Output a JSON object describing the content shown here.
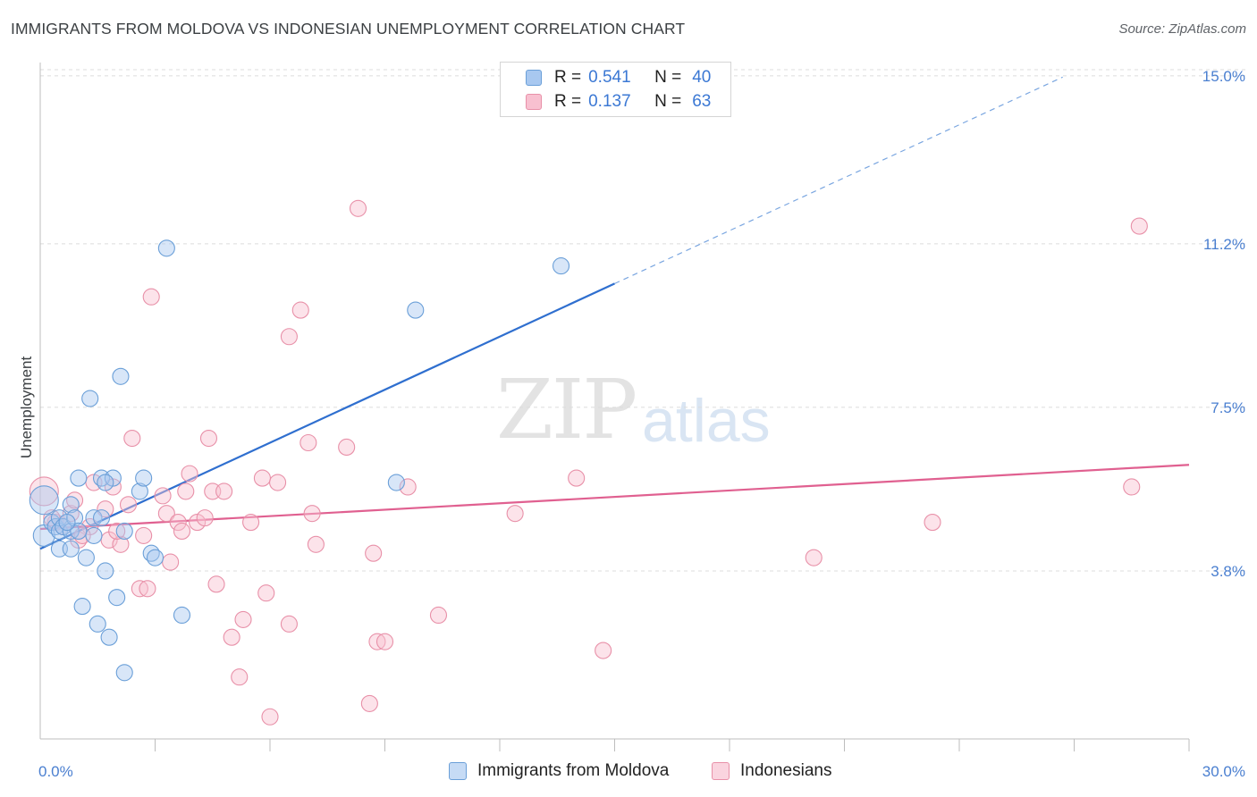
{
  "header": {
    "title": "IMMIGRANTS FROM MOLDOVA VS INDONESIAN UNEMPLOYMENT CORRELATION CHART",
    "source": "Source: ZipAtlas.com"
  },
  "watermark": {
    "zip": "ZIP",
    "atlas": "atlas"
  },
  "legend": {
    "rows": [
      {
        "r_label": "R =",
        "r_value": "0.541",
        "n_label": "N =",
        "n_value": "40",
        "color": "#a8c8f0",
        "border": "#6a9fd8"
      },
      {
        "r_label": "R =",
        "r_value": "0.137",
        "n_label": "N =",
        "n_value": "63",
        "color": "#f8c0d0",
        "border": "#e890a8"
      }
    ]
  },
  "bottom_legend": {
    "items": [
      {
        "label": "Immigrants from Moldova",
        "color": "#a8c8f0",
        "border": "#6a9fd8"
      },
      {
        "label": "Indonesians",
        "color": "#f8c0d0",
        "border": "#e890a8"
      }
    ]
  },
  "chart_data": {
    "type": "scatter",
    "title": "IMMIGRANTS FROM MOLDOVA VS INDONESIAN UNEMPLOYMENT CORRELATION CHART",
    "ylabel": "Unemployment",
    "xlabel": "",
    "xlim": [
      0,
      30
    ],
    "ylim": [
      0,
      15.3
    ],
    "x_tick_labels": [
      {
        "value": 0,
        "label": "0.0%"
      },
      {
        "value": 30,
        "label": "30.0%"
      }
    ],
    "y_tick_labels": [
      {
        "value": 3.8,
        "label": "3.8%"
      },
      {
        "value": 7.5,
        "label": "7.5%"
      },
      {
        "value": 11.2,
        "label": "11.2%"
      },
      {
        "value": 15.0,
        "label": "15.0%"
      }
    ],
    "grid": true,
    "series": [
      {
        "name": "Immigrants from Moldova",
        "color": "#6a9fd8",
        "fill": "#a8c8f0",
        "trend": {
          "x0": 0,
          "y0": 4.3,
          "x1": 15,
          "y1": 10.3,
          "dash_to_x": 26.7,
          "dash_to_y": 14.97,
          "color": "#2f6fcf"
        },
        "points": [
          [
            0.1,
            5.4,
            16
          ],
          [
            0.1,
            4.6,
            12
          ],
          [
            0.3,
            4.9,
            9
          ],
          [
            0.4,
            4.8,
            9
          ],
          [
            0.5,
            4.3,
            9
          ],
          [
            0.5,
            4.7,
            9
          ],
          [
            0.5,
            5.0,
            9
          ],
          [
            0.6,
            4.8,
            9
          ],
          [
            0.8,
            4.7,
            9
          ],
          [
            0.8,
            4.3,
            9
          ],
          [
            0.8,
            5.3,
            9
          ],
          [
            0.9,
            5.0,
            9
          ],
          [
            1.0,
            5.9,
            9
          ],
          [
            1.0,
            4.7,
            9
          ],
          [
            1.2,
            4.1,
            9
          ],
          [
            1.1,
            3.0,
            9
          ],
          [
            1.3,
            7.7,
            9
          ],
          [
            1.4,
            5.0,
            9
          ],
          [
            1.4,
            4.6,
            9
          ],
          [
            1.5,
            2.6,
            9
          ],
          [
            1.6,
            5.9,
            9
          ],
          [
            1.7,
            3.8,
            9
          ],
          [
            1.8,
            2.3,
            9
          ],
          [
            1.9,
            5.9,
            9
          ],
          [
            2.0,
            3.2,
            9
          ],
          [
            2.1,
            8.2,
            9
          ],
          [
            2.2,
            1.5,
            9
          ],
          [
            2.2,
            4.7,
            9
          ],
          [
            2.6,
            5.6,
            9
          ],
          [
            2.7,
            5.9,
            9
          ],
          [
            2.9,
            4.2,
            9
          ],
          [
            3.0,
            4.1,
            9
          ],
          [
            3.3,
            11.1,
            9
          ],
          [
            3.7,
            2.8,
            9
          ],
          [
            9.3,
            5.8,
            9
          ],
          [
            9.8,
            9.7,
            9
          ],
          [
            13.6,
            10.7,
            9
          ],
          [
            1.7,
            5.8,
            9
          ],
          [
            0.7,
            4.9,
            9
          ],
          [
            1.6,
            5.0,
            9
          ]
        ]
      },
      {
        "name": "Indonesians",
        "color": "#e890a8",
        "fill": "#f8c0d0",
        "trend": {
          "x0": 0,
          "y0": 4.75,
          "x1": 30,
          "y1": 6.2,
          "color": "#e06090"
        },
        "points": [
          [
            0.1,
            5.6,
            16
          ],
          [
            0.4,
            4.9,
            9
          ],
          [
            0.6,
            4.8,
            9
          ],
          [
            0.8,
            5.1,
            9
          ],
          [
            0.9,
            5.4,
            9
          ],
          [
            1.0,
            4.5,
            9
          ],
          [
            1.3,
            4.8,
            9
          ],
          [
            1.4,
            5.8,
            9
          ],
          [
            1.7,
            5.2,
            9
          ],
          [
            1.8,
            4.5,
            9
          ],
          [
            1.9,
            5.7,
            9
          ],
          [
            2.1,
            4.4,
            9
          ],
          [
            2.3,
            5.3,
            9
          ],
          [
            2.4,
            6.8,
            9
          ],
          [
            2.6,
            3.4,
            9
          ],
          [
            2.7,
            4.6,
            9
          ],
          [
            2.8,
            3.4,
            9
          ],
          [
            2.9,
            10.0,
            9
          ],
          [
            3.2,
            5.5,
            9
          ],
          [
            3.3,
            5.1,
            9
          ],
          [
            3.4,
            4.0,
            9
          ],
          [
            3.6,
            4.9,
            9
          ],
          [
            3.7,
            4.7,
            9
          ],
          [
            3.8,
            5.6,
            9
          ],
          [
            3.9,
            6.0,
            9
          ],
          [
            4.1,
            4.9,
            9
          ],
          [
            4.3,
            5.0,
            9
          ],
          [
            4.4,
            6.8,
            9
          ],
          [
            4.5,
            5.6,
            9
          ],
          [
            4.6,
            3.5,
            9
          ],
          [
            4.8,
            5.6,
            9
          ],
          [
            5.0,
            2.3,
            9
          ],
          [
            5.2,
            1.4,
            9
          ],
          [
            5.3,
            2.7,
            9
          ],
          [
            5.5,
            4.9,
            9
          ],
          [
            5.8,
            5.9,
            9
          ],
          [
            5.9,
            3.3,
            9
          ],
          [
            6.0,
            0.5,
            9
          ],
          [
            6.2,
            5.8,
            9
          ],
          [
            6.5,
            9.1,
            9
          ],
          [
            6.5,
            2.6,
            9
          ],
          [
            6.8,
            9.7,
            9
          ],
          [
            7.0,
            6.7,
            9
          ],
          [
            7.1,
            5.1,
            9
          ],
          [
            7.2,
            4.4,
            9
          ],
          [
            8.0,
            6.6,
            9
          ],
          [
            8.3,
            12.0,
            9
          ],
          [
            8.6,
            0.8,
            9
          ],
          [
            8.7,
            4.2,
            9
          ],
          [
            8.8,
            2.2,
            9
          ],
          [
            9.0,
            2.2,
            9
          ],
          [
            9.6,
            5.7,
            9
          ],
          [
            10.4,
            2.8,
            9
          ],
          [
            12.4,
            5.1,
            9
          ],
          [
            14.0,
            5.9,
            9
          ],
          [
            14.7,
            2.0,
            9
          ],
          [
            20.2,
            4.1,
            9
          ],
          [
            23.3,
            4.9,
            9
          ],
          [
            28.5,
            5.7,
            9
          ],
          [
            28.7,
            11.6,
            9
          ],
          [
            1.1,
            4.6,
            9
          ],
          [
            0.3,
            5.0,
            9
          ],
          [
            2.0,
            4.7,
            9
          ]
        ]
      }
    ]
  }
}
